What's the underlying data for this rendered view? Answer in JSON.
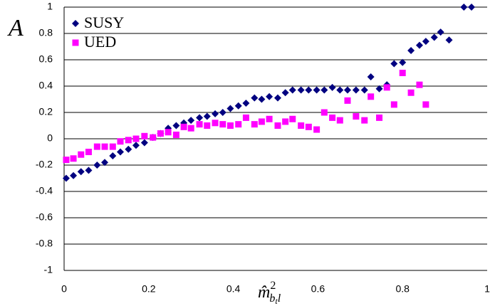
{
  "chart_data": {
    "type": "scatter",
    "y_label": "A",
    "x_label": {
      "base": "m̂",
      "sup": "2",
      "sub": "b",
      "subsub": "t",
      "tail": "l"
    },
    "xlim": [
      0,
      1
    ],
    "xticks": [
      0,
      0.2,
      0.4,
      0.6,
      0.8,
      1
    ],
    "ylim": [
      -1,
      1
    ],
    "yticks": [
      -1,
      -0.8,
      -0.6,
      -0.4,
      -0.2,
      0,
      0.2,
      0.4,
      0.6,
      0.8,
      1
    ],
    "grid": true,
    "legend": "top-left",
    "series": [
      {
        "name": "SUSY",
        "color": "#000080",
        "marker": "diamond",
        "x": [
          0.005,
          0.022,
          0.04,
          0.058,
          0.078,
          0.096,
          0.115,
          0.133,
          0.152,
          0.17,
          0.19,
          0.21,
          0.228,
          0.246,
          0.265,
          0.283,
          0.3,
          0.32,
          0.338,
          0.357,
          0.375,
          0.393,
          0.412,
          0.43,
          0.45,
          0.467,
          0.485,
          0.505,
          0.523,
          0.54,
          0.56,
          0.578,
          0.597,
          0.615,
          0.634,
          0.652,
          0.67,
          0.69,
          0.71,
          0.725,
          0.745,
          0.763,
          0.78,
          0.8,
          0.82,
          0.84,
          0.855,
          0.875,
          0.89,
          0.91,
          0.945,
          0.963
        ],
        "values": [
          -0.3,
          -0.28,
          -0.25,
          -0.24,
          -0.2,
          -0.18,
          -0.13,
          -0.1,
          -0.08,
          -0.05,
          -0.03,
          0.01,
          0.04,
          0.08,
          0.1,
          0.12,
          0.14,
          0.16,
          0.17,
          0.19,
          0.2,
          0.23,
          0.25,
          0.27,
          0.31,
          0.3,
          0.32,
          0.31,
          0.35,
          0.37,
          0.37,
          0.37,
          0.37,
          0.37,
          0.39,
          0.37,
          0.37,
          0.37,
          0.37,
          0.47,
          0.38,
          0.41,
          0.57,
          0.58,
          0.67,
          0.71,
          0.74,
          0.77,
          0.81,
          0.75,
          1.0,
          1.0
        ]
      },
      {
        "name": "UED",
        "color": "#ff00ff",
        "marker": "square",
        "x": [
          0.005,
          0.022,
          0.04,
          0.058,
          0.078,
          0.096,
          0.115,
          0.133,
          0.152,
          0.17,
          0.19,
          0.21,
          0.228,
          0.246,
          0.265,
          0.283,
          0.3,
          0.32,
          0.338,
          0.357,
          0.375,
          0.393,
          0.412,
          0.43,
          0.45,
          0.467,
          0.485,
          0.505,
          0.523,
          0.54,
          0.56,
          0.578,
          0.597,
          0.615,
          0.634,
          0.652,
          0.67,
          0.69,
          0.71,
          0.725,
          0.745,
          0.763,
          0.78,
          0.8,
          0.82,
          0.84,
          0.855
        ],
        "values": [
          -0.16,
          -0.15,
          -0.12,
          -0.1,
          -0.06,
          -0.06,
          -0.06,
          -0.02,
          -0.01,
          0.0,
          0.02,
          0.01,
          0.04,
          0.05,
          0.03,
          0.09,
          0.08,
          0.11,
          0.1,
          0.12,
          0.11,
          0.1,
          0.11,
          0.16,
          0.11,
          0.13,
          0.15,
          0.1,
          0.13,
          0.15,
          0.1,
          0.09,
          0.07,
          0.2,
          0.16,
          0.14,
          0.29,
          0.17,
          0.14,
          0.32,
          0.16,
          0.39,
          0.26,
          0.5,
          0.35,
          0.41,
          0.26
        ]
      }
    ]
  }
}
